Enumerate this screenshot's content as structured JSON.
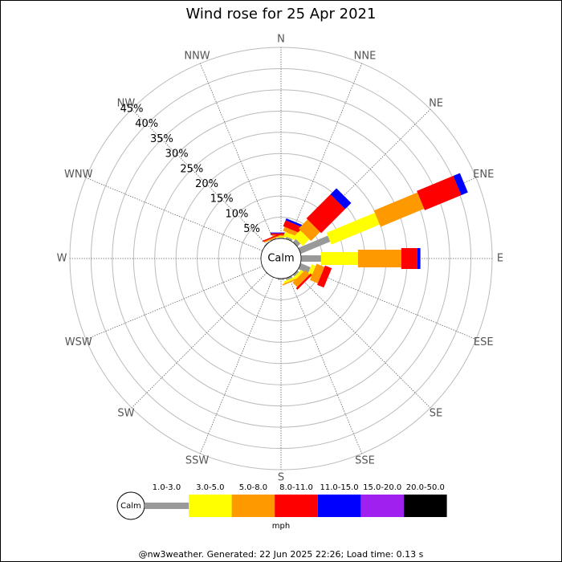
{
  "chart_data": {
    "type": "windrose",
    "title": "Wind rose for 25 Apr 2021",
    "directions": [
      "N",
      "NNE",
      "NE",
      "ENE",
      "E",
      "ESE",
      "SE",
      "SSE",
      "S",
      "SSW",
      "SW",
      "WSW",
      "W",
      "WNW",
      "NW",
      "NNW"
    ],
    "calm_label": "Calm",
    "rlim": [
      0,
      45
    ],
    "rticks": [
      {
        "value": 5,
        "label": "5%"
      },
      {
        "value": 10,
        "label": "10%"
      },
      {
        "value": 15,
        "label": "15%"
      },
      {
        "value": 20,
        "label": "20%"
      },
      {
        "value": 25,
        "label": "25%"
      },
      {
        "value": 30,
        "label": "30%"
      },
      {
        "value": 35,
        "label": "35%"
      },
      {
        "value": 40,
        "label": "40%"
      },
      {
        "value": 45,
        "label": "45%"
      }
    ],
    "series": [
      {
        "name": "1.0-3.0",
        "color": "#999999",
        "values": [
          0.2,
          0.5,
          1,
          7.5,
          4.7,
          2.5,
          0.5,
          0.5,
          0.3,
          0,
          0,
          0,
          0,
          0,
          0.2,
          0.2
        ]
      },
      {
        "name": "3.0-5.0",
        "color": "#ffff00",
        "values": [
          0.3,
          1,
          2.2,
          12.3,
          8.7,
          1,
          0.7,
          0.5,
          0,
          0,
          0,
          0,
          0,
          0,
          0,
          0
        ]
      },
      {
        "name": "5.0-8.0",
        "color": "#ff9900",
        "values": [
          0.3,
          1,
          3,
          11.1,
          10.2,
          2,
          1.5,
          0.3,
          0,
          0,
          0,
          0,
          0,
          0,
          0,
          0.3
        ]
      },
      {
        "name": "8.0-11.0",
        "color": "#ff0000",
        "values": [
          0.4,
          1.5,
          8,
          9.3,
          3.8,
          1.7,
          0.5,
          0,
          0,
          0,
          0,
          0,
          0,
          0,
          0,
          0.3
        ]
      },
      {
        "name": "11.0-15.0",
        "color": "#0000ff",
        "values": [
          0.2,
          0.5,
          2,
          1.7,
          0.7,
          0,
          0,
          0,
          0,
          0,
          0,
          0,
          0,
          0,
          0,
          0
        ]
      },
      {
        "name": "15.0-20.0",
        "color": "#a020f0",
        "values": [
          0,
          0,
          0,
          0,
          0,
          0,
          0,
          0,
          0,
          0,
          0,
          0,
          0,
          0,
          0,
          0
        ]
      },
      {
        "name": "20.0-50.0",
        "color": "#000000",
        "values": [
          0,
          0,
          0,
          0,
          0,
          0,
          0,
          0,
          0,
          0,
          0,
          0,
          0,
          0,
          0,
          0
        ]
      }
    ],
    "unit": "mph",
    "footer": "@nw3weather. Generated: 22 Jun 2025 22:26; Load time: 0.13 s"
  }
}
